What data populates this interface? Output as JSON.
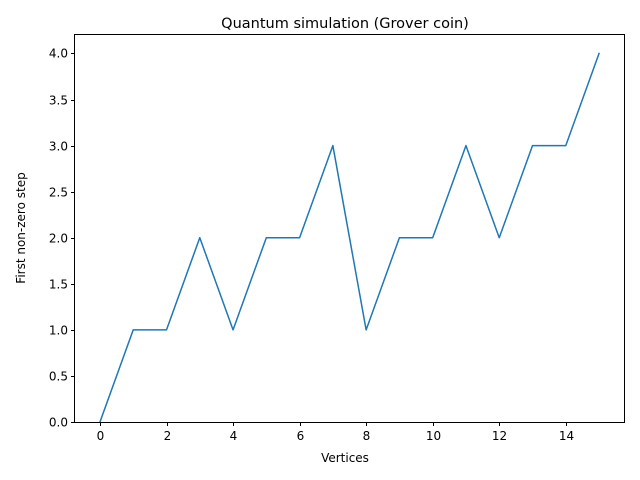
{
  "chart_data": {
    "type": "line",
    "title": "Quantum simulation (Grover coin)",
    "xlabel": "Vertices",
    "ylabel": "First non-zero step",
    "x": [
      0,
      1,
      2,
      3,
      4,
      5,
      6,
      7,
      8,
      9,
      10,
      11,
      12,
      13,
      14,
      15
    ],
    "series": [
      {
        "values": [
          0,
          1,
          1,
          2,
          1,
          2,
          2,
          3,
          1,
          2,
          2,
          3,
          2,
          3,
          3,
          4
        ],
        "color": "#1f77b4"
      }
    ],
    "xlim": [
      -0.75,
      15.75
    ],
    "ylim": [
      0,
      4.2
    ],
    "xticks": [
      0,
      2,
      4,
      6,
      8,
      10,
      12,
      14
    ],
    "xtick_labels": [
      "0",
      "2",
      "4",
      "6",
      "8",
      "10",
      "12",
      "14"
    ],
    "yticks": [
      0,
      0.5,
      1,
      1.5,
      2,
      2.5,
      3,
      3.5,
      4
    ],
    "ytick_labels": [
      "0.0",
      "0.5",
      "1.0",
      "1.5",
      "2.0",
      "2.5",
      "3.0",
      "3.5",
      "4.0"
    ],
    "grid": false,
    "legend": "none"
  }
}
